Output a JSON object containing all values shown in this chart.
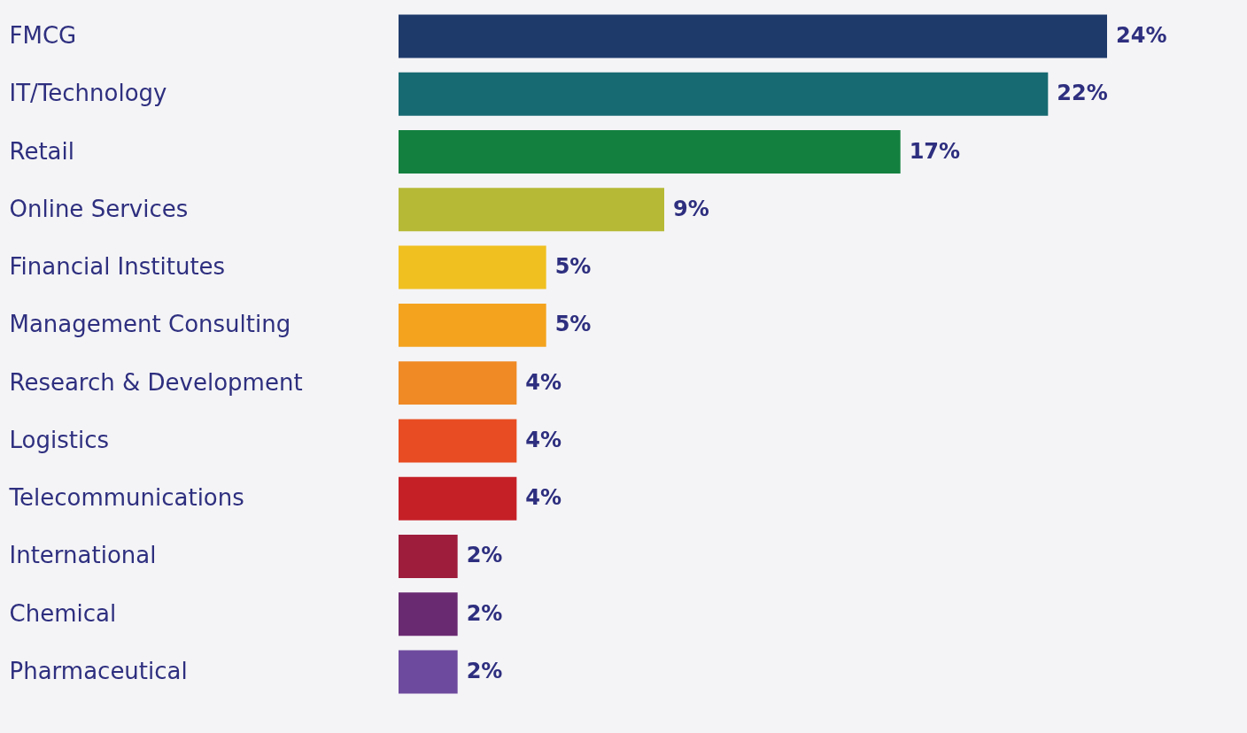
{
  "chart_data": {
    "type": "bar",
    "orientation": "horizontal",
    "value_labels": [
      "24%",
      "22%",
      "17%",
      "9%",
      "5%",
      "5%",
      "4%",
      "4%",
      "4%",
      "2%",
      "2%",
      "2%"
    ],
    "categories": [
      "FMCG",
      "IT/Technology",
      "Retail",
      "Online Services",
      "Financial Institutes",
      "Management Consulting",
      "Research & Development",
      "Logistics",
      "Telecommunications",
      "International",
      "Chemical",
      "Pharmaceutical"
    ],
    "values": [
      24,
      22,
      17,
      9,
      5,
      5,
      4,
      4,
      4,
      2,
      2,
      2
    ],
    "colors": [
      "#1e3a6b",
      "#176a72",
      "#13803f",
      "#b5b935",
      "#f0c020",
      "#f4a31e",
      "#ef8a25",
      "#e84c22",
      "#c62027",
      "#9e1c3c",
      "#6a2a72",
      "#6e4a9e"
    ]
  }
}
